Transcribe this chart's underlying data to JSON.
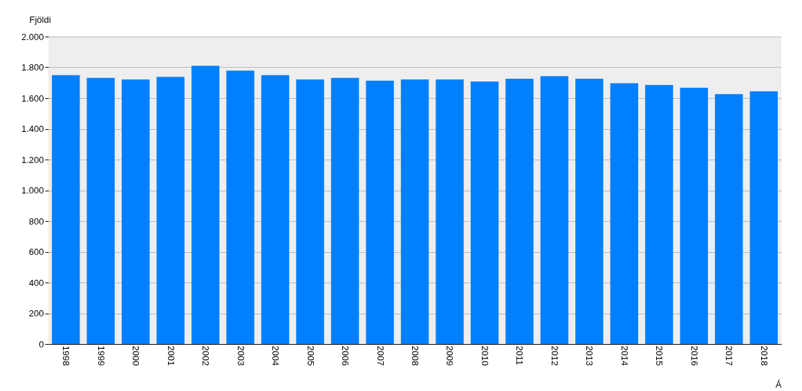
{
  "chart_data": {
    "type": "bar",
    "ylabel": "Fjöldi",
    "xlabel": "Á",
    "categories": [
      "1998",
      "1999",
      "2000",
      "2001",
      "2002",
      "2003",
      "2004",
      "2005",
      "2006",
      "2007",
      "2008",
      "2009",
      "2010",
      "2011",
      "2012",
      "2013",
      "2014",
      "2015",
      "2016",
      "2017",
      "2018"
    ],
    "series": [
      {
        "color": "#0080ff",
        "values": [
          1749,
          1732,
          1721,
          1738,
          1810,
          1779,
          1749,
          1721,
          1732,
          1714,
          1721,
          1721,
          1708,
          1726,
          1743,
          1726,
          1697,
          1685,
          1667,
          1626,
          1644
        ]
      }
    ],
    "ylim": [
      0,
      2000
    ],
    "yticks": [
      0,
      200,
      400,
      600,
      800,
      {
        "value": 1000,
        "label": "1.000"
      },
      {
        "value": 1200,
        "label": "1.200"
      },
      {
        "value": 1400,
        "label": "1.400"
      },
      {
        "value": 1600,
        "label": "1.600"
      },
      {
        "value": 1800,
        "label": "1.800"
      },
      {
        "value": 2000,
        "label": "2.000"
      }
    ],
    "grid": "y"
  }
}
